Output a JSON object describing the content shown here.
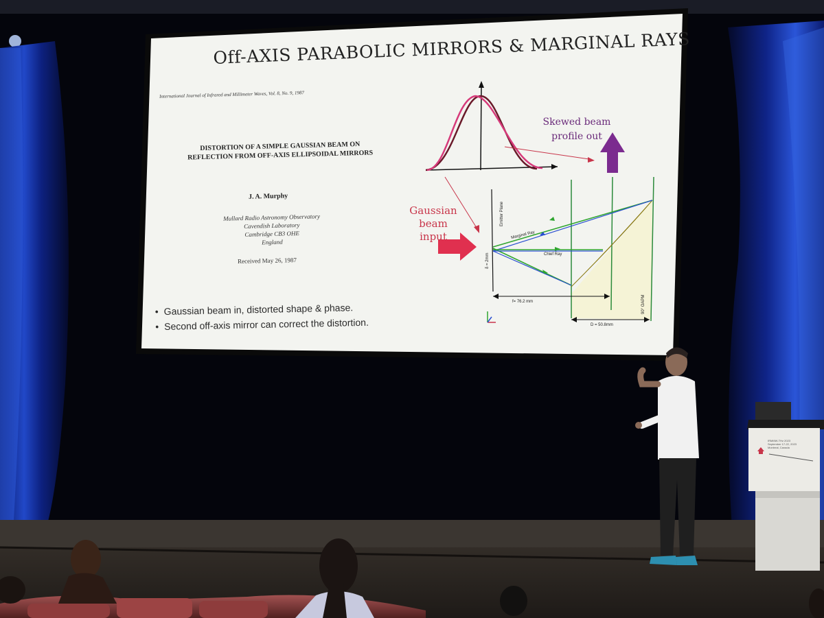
{
  "slide": {
    "title": "Off-AXIS PARABOLIC MIRRORS & MARGINAL RAYS",
    "journal_ref": "International Journal of Infrared and Millimeter Waves, Vol. 8, No. 9, 1987",
    "paper_title": "DISTORTION OF A SIMPLE GAUSSIAN BEAM ON REFLECTION FROM OFF-AXIS ELLIPSOIDAL MIRRORS",
    "author": "J. A. Murphy",
    "affiliation": [
      "Mullard Radio Astronomy Observatory",
      "Cavendish Laboratory",
      "Cambridge CB3 OHE",
      "England"
    ],
    "received": "Received May 26, 1987",
    "bullets": [
      "Gaussian beam in, distorted shape & phase.",
      "Second off-axis mirror can correct the distortion."
    ],
    "skewed_label": "Skewed beam profile out",
    "gaussian_label": "Gaussian beam input",
    "diagram": {
      "emitter_plane": "Emitter Plane",
      "marginal_ray": "Marginal Ray",
      "chief_ray": "Chief Ray",
      "beam_size": "δ = 2mm",
      "focal": "f= 76.2 mm",
      "diameter": "D = 50.8mm",
      "oapm": "90° OAPM"
    }
  },
  "podium_sign": {
    "line1": "IRMMW-THz 2023",
    "line2": "September 17-22, 2023",
    "line3": "Montreal, Canada"
  },
  "colors": {
    "slide_bg": "#f3f4f0",
    "curtain": "#1d3fb0",
    "stage": "#2a2622",
    "accent_red": "#d63a55",
    "accent_purple": "#7b2b8f",
    "ray_green": "#2fa52f",
    "ray_blue": "#2a4fd1"
  }
}
